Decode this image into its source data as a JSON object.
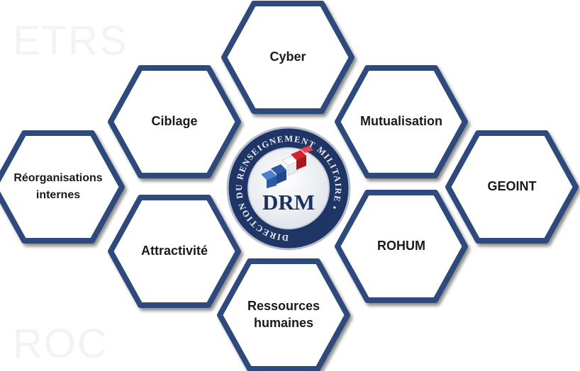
{
  "watermarks": {
    "top": "ETRS",
    "bottom": "ROC"
  },
  "logo": {
    "ring_text": "DIRECTION DU RENSEIGNEMENT MILITAIRE •",
    "acronym": "DRM"
  },
  "hexagons": [
    {
      "id": "cyber",
      "lines": [
        "Cyber"
      ]
    },
    {
      "id": "ciblage",
      "lines": [
        "Ciblage"
      ]
    },
    {
      "id": "mutualisation",
      "lines": [
        "Mutualisation"
      ]
    },
    {
      "id": "reorganisations",
      "lines": [
        "Réorganisations",
        "internes"
      ]
    },
    {
      "id": "geoint",
      "lines": [
        "GEOINT"
      ]
    },
    {
      "id": "attractivite",
      "lines": [
        "Attractivité"
      ]
    },
    {
      "id": "rohum",
      "lines": [
        "ROHUM"
      ]
    },
    {
      "id": "ressources",
      "lines": [
        "Ressources",
        "humaines"
      ]
    }
  ],
  "colors": {
    "hex_stroke": "#2e4a7b",
    "hex_fill": "#ffffff",
    "logo_ring": "#1e3566",
    "logo_inner": "#f3f4f7",
    "flag_blue": "#2b5aa8",
    "flag_red": "#d8212a"
  }
}
